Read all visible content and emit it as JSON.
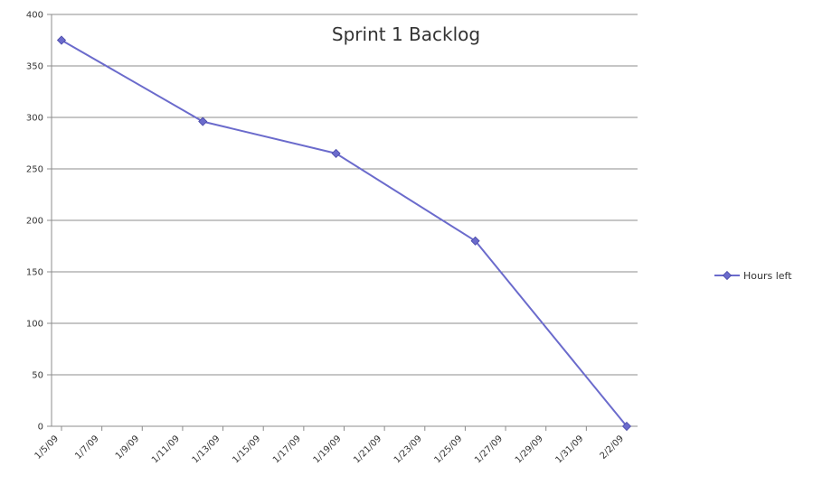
{
  "chart_data": {
    "type": "line",
    "title": "Sprint 1 Backlog",
    "xlabel": "",
    "ylabel": "",
    "ylim": [
      0,
      400
    ],
    "y_ticks": [
      0,
      50,
      100,
      150,
      200,
      250,
      300,
      350,
      400
    ],
    "x_tick_labels": [
      "1/5/09",
      "1/7/09",
      "1/9/09",
      "1/11/09",
      "1/13/09",
      "1/15/09",
      "1/17/09",
      "1/19/09",
      "1/21/09",
      "1/23/09",
      "1/25/09",
      "1/27/09",
      "1/29/09",
      "1/31/09",
      "2/2/09"
    ],
    "x_tick_days": [
      0,
      2,
      4,
      6,
      8,
      10,
      12,
      14,
      16,
      18,
      20,
      22,
      24,
      26,
      28
    ],
    "xlim_days": [
      0,
      28.5
    ],
    "grid": true,
    "legend_position": "right",
    "colors": {
      "series": "#6b6bcc",
      "grid": "#8c8c8c",
      "axis": "#8c8c8c"
    },
    "series": [
      {
        "name": "Hours left",
        "marker": "diamond",
        "x_days": [
          0,
          7,
          13.6,
          20.5,
          28
        ],
        "values": [
          375,
          296,
          265,
          180,
          0
        ]
      }
    ]
  }
}
